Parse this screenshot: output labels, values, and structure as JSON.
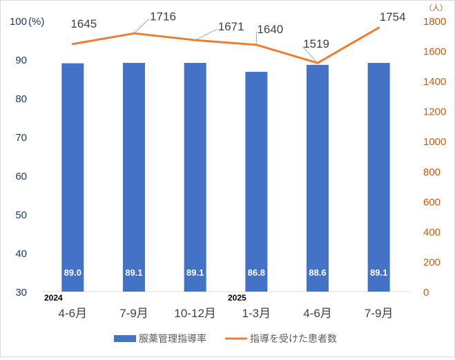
{
  "chart_data": {
    "type": "bar",
    "categories": [
      "4-6月",
      "7-9月",
      "10-12月",
      "1-3月",
      "4-6月",
      "7-9月"
    ],
    "year_labels": [
      "2024",
      "",
      "",
      "2025",
      "",
      ""
    ],
    "left_axis": {
      "unit_label": "(%)",
      "ylim": [
        30,
        100
      ],
      "ticks": [
        30,
        40,
        50,
        60,
        70,
        80,
        90,
        100
      ]
    },
    "right_axis": {
      "unit_label": "（人）",
      "ylim": [
        0,
        1800
      ],
      "ticks": [
        0,
        200,
        400,
        600,
        800,
        1000,
        1200,
        1400,
        1600,
        1800
      ]
    },
    "series": [
      {
        "name": "服薬管理指導率",
        "type": "bar",
        "axis": "left",
        "color": "#4472c4",
        "values": [
          89.0,
          89.1,
          89.1,
          86.8,
          88.6,
          89.1
        ],
        "labels": [
          "89.0",
          "89.1",
          "89.1",
          "86.8",
          "88.6",
          "89.1"
        ]
      },
      {
        "name": "指導を受けた患者数",
        "type": "line",
        "axis": "right",
        "color": "#ed7d31",
        "values": [
          1645,
          1716,
          1671,
          1640,
          1519,
          1754
        ],
        "labels": [
          "1645",
          "1716",
          "1671",
          "1640",
          "1519",
          "1754"
        ]
      }
    ],
    "legend_position": "bottom",
    "grid": false
  }
}
